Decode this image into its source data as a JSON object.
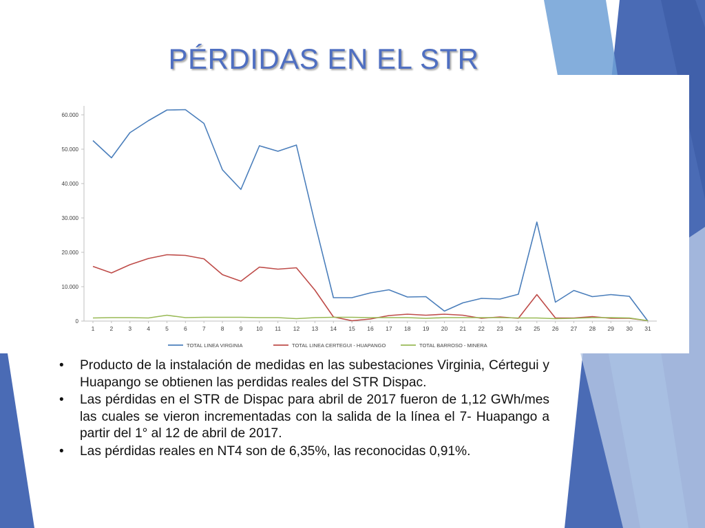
{
  "slide": {
    "title": "PÉRDIDAS EN EL STR",
    "bullets": [
      "Producto de la instalación de medidas en las subestaciones Virginia, Cértegui y Huapango se obtienen las perdidas reales del STR Dispac.",
      "Las pérdidas en el STR de Dispac para abril de 2017 fueron de 1,12 GWh/mes las cuales se vieron incrementadas con la salida de la línea el 7- Huapango a partir del 1° al 12 de abril de 2017.",
      "Las pérdidas reales en NT4 son de 6,35%, las reconocidas 0,91%."
    ],
    "bullet_glyph": "•"
  },
  "colors": {
    "title": "#4f6fc1",
    "decor_dark": "#4a6bb5",
    "decor_mid": "#6fa0d6",
    "decor_light": "#b8c9e6"
  },
  "chart_data": {
    "type": "line",
    "title": "",
    "xlabel": "",
    "ylabel": "",
    "x": [
      1,
      2,
      3,
      4,
      5,
      6,
      7,
      8,
      9,
      10,
      11,
      12,
      13,
      14,
      15,
      16,
      17,
      18,
      19,
      20,
      21,
      22,
      23,
      24,
      25,
      26,
      27,
      28,
      29,
      30,
      31
    ],
    "ylim": [
      0,
      60000
    ],
    "yticks": [
      0,
      10000,
      20000,
      30000,
      40000,
      50000,
      60000
    ],
    "ytick_labels": [
      "0",
      "10.000",
      "20.000",
      "30.000",
      "40.000",
      "50.000",
      "60.000"
    ],
    "legend_position": "bottom",
    "grid": false,
    "series": [
      {
        "name": "TOTAL LINEA VIRGINIA",
        "color": "#4a7ebb",
        "values": [
          52500,
          47500,
          54800,
          58300,
          61400,
          61500,
          57500,
          44000,
          38300,
          51000,
          49400,
          51200,
          28500,
          6800,
          6800,
          8200,
          9100,
          7000,
          7100,
          2900,
          5300,
          6600,
          6400,
          7800,
          28800,
          5500,
          8900,
          7100,
          7700,
          7200,
          0
        ]
      },
      {
        "name": "TOTAL LINEA CERTEGUI - HUAPANGO",
        "color": "#be4b48",
        "values": [
          15900,
          14000,
          16400,
          18200,
          19300,
          19100,
          18100,
          13500,
          11600,
          15700,
          15100,
          15500,
          9000,
          1200,
          100,
          600,
          1600,
          2000,
          1700,
          2000,
          1700,
          800,
          1200,
          800,
          7700,
          900,
          900,
          1300,
          800,
          800,
          100
        ]
      },
      {
        "name": "TOTAL  BARROSO - MINERA",
        "color": "#98b954",
        "values": [
          900,
          1000,
          1000,
          900,
          1700,
          1000,
          1100,
          1100,
          1100,
          1000,
          1000,
          700,
          1000,
          1100,
          1100,
          1000,
          1000,
          1000,
          800,
          1000,
          1000,
          1000,
          1000,
          900,
          900,
          700,
          800,
          1000,
          1000,
          900,
          100
        ]
      }
    ]
  }
}
